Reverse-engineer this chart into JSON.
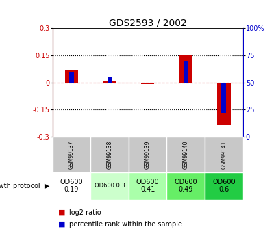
{
  "title": "GDS2593 / 2002",
  "samples": [
    "GSM99137",
    "GSM99138",
    "GSM99139",
    "GSM99140",
    "GSM99141"
  ],
  "log2_ratio": [
    0.07,
    0.01,
    -0.01,
    0.155,
    -0.235
  ],
  "percentile_rank": [
    60,
    55,
    49,
    70,
    22
  ],
  "ylim_left": [
    -0.3,
    0.3
  ],
  "ylim_right": [
    0,
    100
  ],
  "yticks_left": [
    -0.3,
    -0.15,
    0.0,
    0.15,
    0.3
  ],
  "yticks_right": [
    0,
    25,
    50,
    75,
    100
  ],
  "red_color": "#cc0000",
  "blue_color": "#0000cc",
  "protocol_values": [
    "OD600\n0.19",
    "OD600 0.3",
    "OD600\n0.41",
    "OD600\n0.49",
    "OD600\n0.6"
  ],
  "protocol_bg": [
    "#ffffff",
    "#ccffcc",
    "#aaffaa",
    "#66ee66",
    "#22cc44"
  ],
  "protocol_fontsize": [
    7,
    6,
    7,
    7,
    7
  ],
  "sample_label_bg": "#c8c8c8",
  "title_fontsize": 10,
  "tick_fontsize": 7
}
